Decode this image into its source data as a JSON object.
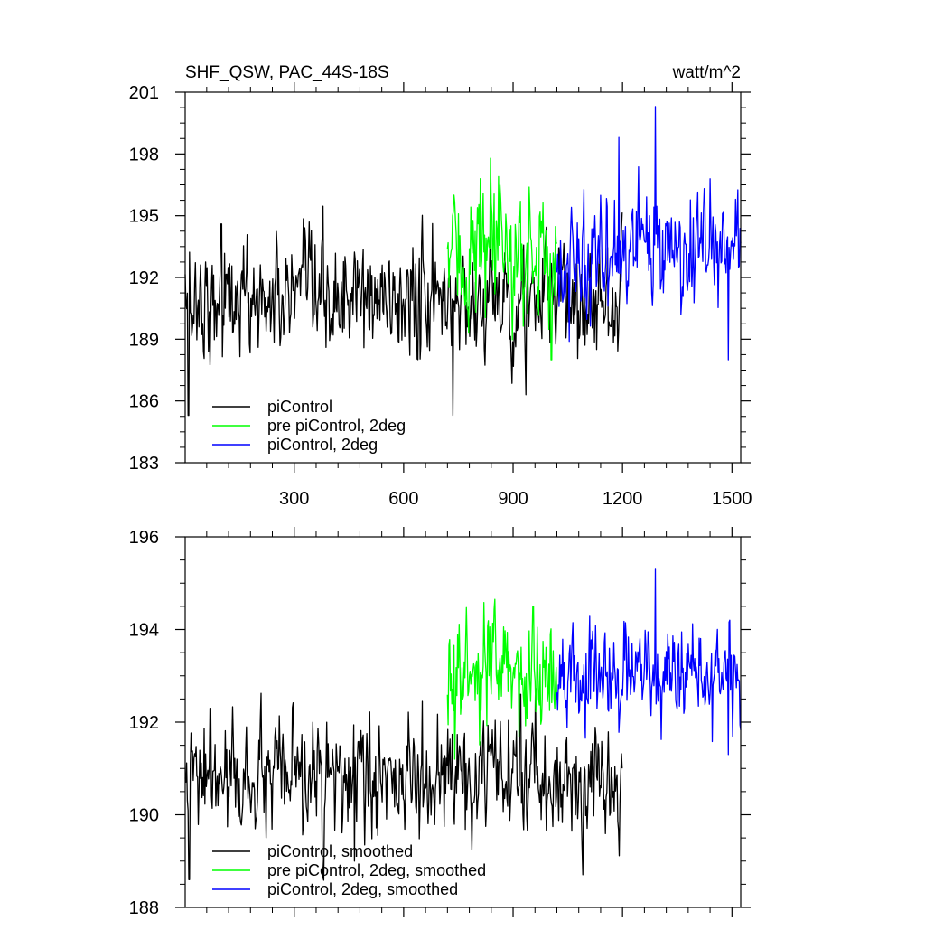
{
  "chart_data": [
    {
      "type": "line",
      "title": "SHF_QSW, PAC_44S-18S",
      "units": "watt/m^2",
      "xlabel": "",
      "ylabel": "",
      "xlim": [
        1,
        1524
      ],
      "ylim": [
        183,
        201
      ],
      "xticks": [
        300,
        600,
        900,
        1200,
        1500
      ],
      "xtick_labels": [
        "300",
        "600",
        "900",
        "1200",
        "1500"
      ],
      "yticks": [
        183,
        186,
        189,
        192,
        195,
        198,
        201
      ],
      "ytick_labels": [
        "183",
        "186",
        "189",
        "192",
        "195",
        "198",
        "201"
      ],
      "legend_position": "bottom-left",
      "series": [
        {
          "name": "piControl",
          "color": "#000000",
          "x_start": 1,
          "x_end": 1200,
          "mean": 190.9,
          "noise": 1.3,
          "anomalies": [
            [
              10,
              185.3
            ],
            [
              100,
              194.6
            ],
            [
              735,
              185.3
            ],
            [
              935,
              186.3
            ]
          ]
        },
        {
          "name": "pre piControl, 2deg",
          "color": "#00ff00",
          "x_start": 720,
          "x_end": 1020,
          "mean": 193.0,
          "noise": 1.5,
          "anomalies": [
            [
              810,
              196.8
            ],
            [
              860,
              196.9
            ],
            [
              1005,
              188.0
            ]
          ]
        },
        {
          "name": "piControl, 2deg",
          "color": "#0000ff",
          "x_start": 1020,
          "x_end": 1524,
          "mean": 193.2,
          "noise": 1.3,
          "anomalies": [
            [
              1190,
              198.8
            ],
            [
              1290,
              200.3
            ],
            [
              1360,
              190.2
            ],
            [
              1490,
              188.0
            ]
          ]
        }
      ]
    },
    {
      "type": "line",
      "title": "",
      "xlabel": "",
      "ylabel": "",
      "xlim": [
        1,
        1524
      ],
      "ylim": [
        188,
        196
      ],
      "xticks": [
        300,
        600,
        900,
        1200,
        1500
      ],
      "xtick_labels": [],
      "yticks": [
        188,
        190,
        192,
        194,
        196
      ],
      "ytick_labels": [
        "188",
        "190",
        "192",
        "194",
        "196"
      ],
      "legend_position": "bottom-left",
      "series": [
        {
          "name": "piControl, smoothed",
          "color": "#000000",
          "x_start": 1,
          "x_end": 1200,
          "mean": 190.7,
          "noise": 0.55,
          "anomalies": [
            [
              12,
              188.6
            ],
            [
              70,
              192.3
            ],
            [
              465,
              189.0
            ],
            [
              920,
              192.6
            ]
          ]
        },
        {
          "name": "pre piControl, 2deg, smoothed",
          "color": "#00ff00",
          "x_start": 720,
          "x_end": 1020,
          "mean": 193.0,
          "noise": 0.55,
          "anomalies": [
            [
              740,
              191.2
            ],
            [
              955,
              194.5
            ]
          ]
        },
        {
          "name": "piControl, 2deg, smoothed",
          "color": "#0000ff",
          "x_start": 1020,
          "x_end": 1524,
          "mean": 193.0,
          "noise": 0.5,
          "anomalies": [
            [
              1290,
              195.3
            ],
            [
              1490,
              191.3
            ]
          ]
        }
      ]
    }
  ]
}
